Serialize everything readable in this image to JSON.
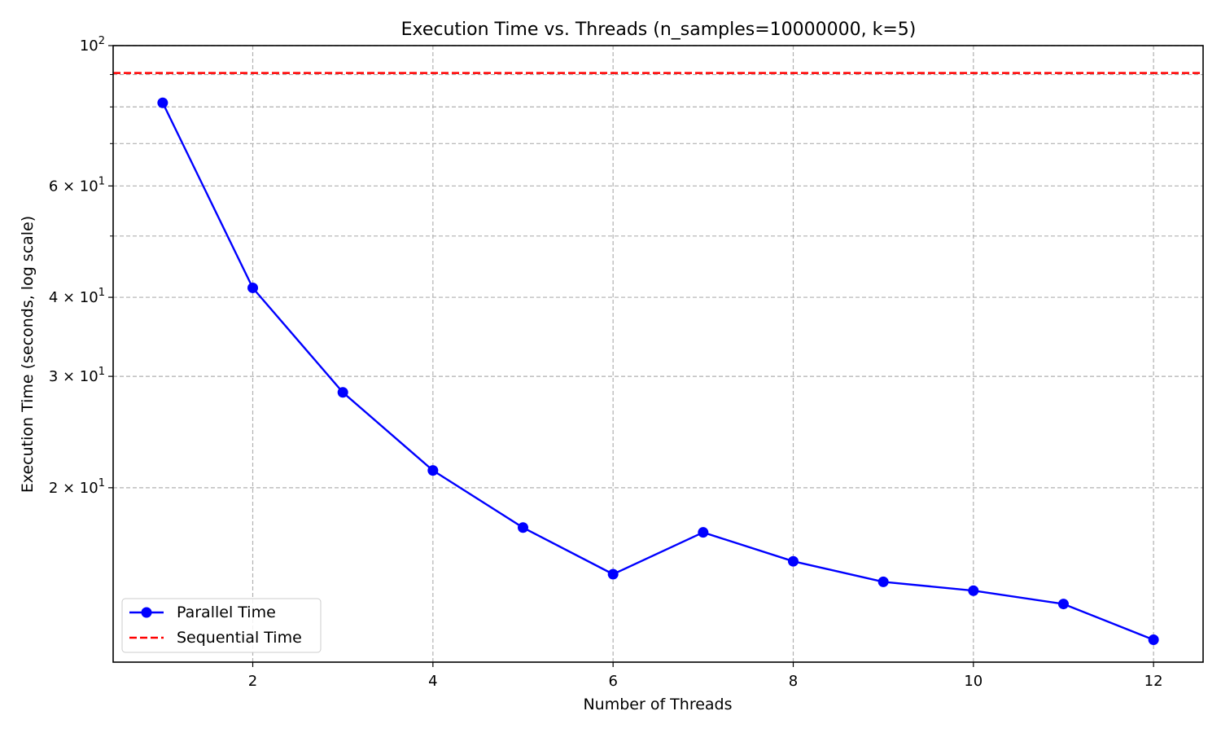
{
  "chart_data": {
    "type": "line",
    "title": "Execution Time vs. Threads (n_samples=10000000, k=5)",
    "xlabel": "Number of Threads",
    "ylabel": "Execution Time (seconds, log scale)",
    "x": [
      1,
      2,
      3,
      4,
      5,
      6,
      7,
      8,
      9,
      10,
      11,
      12
    ],
    "xlim": [
      0.45,
      12.55
    ],
    "ylim": [
      10.6,
      100
    ],
    "y_scale": "log",
    "x_ticks": [
      2,
      4,
      6,
      8,
      10,
      12
    ],
    "x_tick_labels": [
      "2",
      "4",
      "6",
      "8",
      "10",
      "12"
    ],
    "y_major_ticks": [
      {
        "value": 100,
        "label_base": "10",
        "label_exp": "2"
      },
      {
        "value": 60,
        "label_base": "6 × 10",
        "label_exp": "1"
      },
      {
        "value": 40,
        "label_base": "4 × 10",
        "label_exp": "1"
      },
      {
        "value": 30,
        "label_base": "3 × 10",
        "label_exp": "1"
      },
      {
        "value": 20,
        "label_base": "2 × 10",
        "label_exp": "1"
      }
    ],
    "y_grid_values": [
      100,
      90,
      80,
      70,
      60,
      50,
      40,
      30,
      20
    ],
    "grid": true,
    "series": [
      {
        "name": "Parallel Time",
        "color": "#0000ff",
        "style": "solid",
        "marker": "circle",
        "values": [
          81.2,
          41.4,
          28.3,
          21.3,
          17.3,
          14.6,
          17.0,
          15.3,
          14.2,
          13.75,
          13.1,
          11.5
        ]
      },
      {
        "name": "Sequential Time",
        "color": "#ff0000",
        "style": "dashed",
        "type": "hline",
        "value": 90.5
      }
    ],
    "legend_position": "lower-left"
  }
}
